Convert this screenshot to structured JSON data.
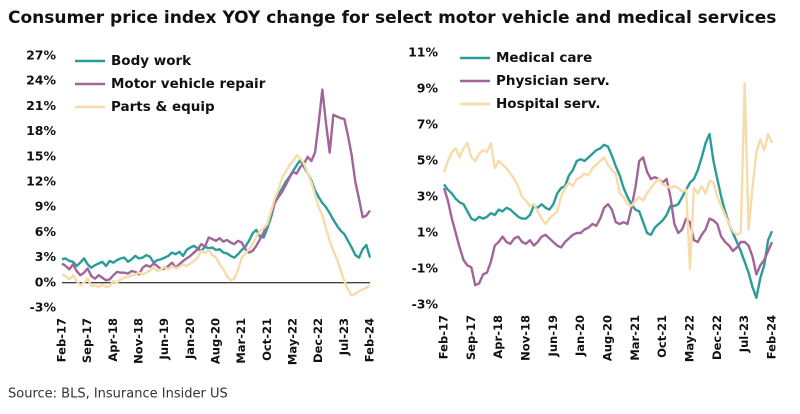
{
  "title": "Consumer price index YOY change for select motor vehicle and medical services",
  "source": "Source: BLS, Insurance Insider US",
  "chart_data": [
    {
      "type": "line",
      "categories": [
        "Feb-17",
        null,
        null,
        null,
        null,
        null,
        null,
        "Sep-17",
        null,
        null,
        null,
        null,
        null,
        null,
        "Apr-18",
        null,
        null,
        null,
        null,
        null,
        null,
        "Nov-18",
        null,
        null,
        null,
        null,
        null,
        null,
        "Jun-19",
        null,
        null,
        null,
        null,
        null,
        null,
        "Jan-20",
        null,
        null,
        null,
        null,
        null,
        null,
        "Aug-20",
        null,
        null,
        null,
        null,
        null,
        null,
        "Mar-21",
        null,
        null,
        null,
        null,
        null,
        null,
        "Oct-21",
        null,
        null,
        null,
        null,
        null,
        null,
        "May-22",
        null,
        null,
        null,
        null,
        null,
        null,
        "Dec-22",
        null,
        null,
        null,
        null,
        null,
        null,
        "Jul-23",
        null,
        null,
        null,
        null,
        null,
        null,
        "Feb-24"
      ],
      "ylim": [
        -3,
        27
      ],
      "yticks": [
        {
          "value": -3,
          "label": "-3%"
        },
        {
          "value": 0,
          "label": "0%"
        },
        {
          "value": 3,
          "label": "3%"
        },
        {
          "value": 6,
          "label": "6%"
        },
        {
          "value": 9,
          "label": "9%"
        },
        {
          "value": 12,
          "label": "12%"
        },
        {
          "value": 15,
          "label": "15%"
        },
        {
          "value": 18,
          "label": "18%"
        },
        {
          "value": 21,
          "label": "21%"
        },
        {
          "value": 24,
          "label": "24%"
        },
        {
          "value": 27,
          "label": "27%"
        }
      ],
      "series": [
        {
          "name": "Body work",
          "color": "#2a9d99",
          "values": [
            2.8,
            2.9,
            2.6,
            2.5,
            2.0,
            2.4,
            2.9,
            2.2,
            1.8,
            2.1,
            2.3,
            2.5,
            2.0,
            2.6,
            2.4,
            2.7,
            2.9,
            3.0,
            2.5,
            2.8,
            3.2,
            2.9,
            3.0,
            3.3,
            3.1,
            2.4,
            2.7,
            2.8,
            3.0,
            3.2,
            3.6,
            3.4,
            3.7,
            3.2,
            3.9,
            4.2,
            4.4,
            4.1,
            3.8,
            4.3,
            4.1,
            4.2,
            3.9,
            4.0,
            3.6,
            3.5,
            3.2,
            3.0,
            3.4,
            3.9,
            4.3,
            5.0,
            5.9,
            6.3,
            5.5,
            5.4,
            6.5,
            7.8,
            9.5,
            10.5,
            11.2,
            12.0,
            12.6,
            13.3,
            14.0,
            14.6,
            13.8,
            13.0,
            12.2,
            11.0,
            10.2,
            9.5,
            9.0,
            8.3,
            7.5,
            6.8,
            6.2,
            5.8,
            5.0,
            4.2,
            3.3,
            3.0,
            4.0,
            4.5,
            3.0
          ]
        },
        {
          "name": "Motor vehicle repair",
          "color": "#a0659a",
          "values": [
            2.3,
            2.0,
            1.6,
            2.2,
            1.4,
            0.9,
            1.2,
            1.7,
            0.8,
            0.5,
            0.9,
            0.6,
            0.3,
            0.4,
            0.9,
            1.3,
            1.2,
            1.2,
            1.1,
            1.4,
            1.3,
            1.0,
            1.8,
            2.1,
            1.9,
            2.3,
            2.0,
            1.6,
            1.7,
            2.0,
            2.4,
            1.8,
            2.2,
            2.6,
            2.9,
            3.2,
            3.6,
            4.0,
            4.6,
            4.3,
            5.4,
            5.2,
            5.0,
            5.3,
            4.9,
            5.1,
            4.8,
            4.6,
            5.0,
            4.8,
            4.0,
            3.6,
            3.8,
            4.4,
            5.2,
            6.0,
            7.0,
            8.2,
            9.5,
            10.2,
            10.8,
            11.6,
            12.5,
            13.2,
            13.0,
            13.8,
            14.2,
            15.0,
            14.5,
            15.5,
            19.0,
            23.0,
            19.0,
            15.5,
            20.0,
            19.8,
            19.6,
            19.5,
            17.5,
            15.2,
            12.0,
            10.0,
            7.8,
            8.0,
            8.6
          ]
        },
        {
          "name": "Parts & equip",
          "color": "#f6dcaa",
          "values": [
            1.0,
            0.8,
            0.4,
            0.9,
            0.2,
            -0.3,
            0.0,
            0.5,
            -0.4,
            -0.3,
            -0.5,
            -0.2,
            -0.5,
            -0.4,
            0.2,
            0.0,
            0.4,
            0.6,
            0.7,
            0.9,
            1.0,
            1.2,
            1.0,
            1.2,
            1.5,
            1.8,
            1.4,
            1.6,
            1.9,
            1.6,
            2.0,
            1.7,
            1.9,
            2.2,
            2.0,
            2.3,
            2.6,
            3.0,
            3.8,
            3.5,
            3.9,
            3.3,
            3.0,
            2.2,
            1.6,
            0.8,
            0.3,
            0.5,
            1.5,
            3.0,
            3.5,
            4.0,
            4.6,
            5.5,
            6.2,
            6.5,
            7.0,
            8.5,
            10.0,
            11.0,
            12.5,
            13.2,
            14.0,
            14.5,
            15.2,
            14.8,
            14.2,
            13.0,
            12.0,
            10.5,
            9.0,
            8.0,
            6.5,
            5.0,
            3.8,
            2.8,
            1.5,
            0.2,
            -0.8,
            -1.5,
            -1.3,
            -1.0,
            -0.8,
            -0.6,
            -0.3
          ]
        }
      ]
    },
    {
      "type": "line",
      "categories": [
        "Feb-17",
        null,
        null,
        null,
        null,
        null,
        null,
        "Sep-17",
        null,
        null,
        null,
        null,
        null,
        null,
        "Apr-18",
        null,
        null,
        null,
        null,
        null,
        null,
        "Nov-18",
        null,
        null,
        null,
        null,
        null,
        null,
        "Jun-19",
        null,
        null,
        null,
        null,
        null,
        null,
        "Jan-20",
        null,
        null,
        null,
        null,
        null,
        null,
        "Aug-20",
        null,
        null,
        null,
        null,
        null,
        null,
        "Mar-21",
        null,
        null,
        null,
        null,
        null,
        null,
        "Oct-21",
        null,
        null,
        null,
        null,
        null,
        null,
        "May-22",
        null,
        null,
        null,
        null,
        null,
        null,
        "Dec-22",
        null,
        null,
        null,
        null,
        null,
        null,
        "Jul-23",
        null,
        null,
        null,
        null,
        null,
        null,
        "Feb-24"
      ],
      "ylim": [
        -3,
        11
      ],
      "yticks": [
        {
          "value": -3,
          "label": "-3%"
        },
        {
          "value": -1,
          "label": "-1%"
        },
        {
          "value": 1,
          "label": "1%"
        },
        {
          "value": 3,
          "label": "3%"
        },
        {
          "value": 5,
          "label": "5%"
        },
        {
          "value": 7,
          "label": "7%"
        },
        {
          "value": 9,
          "label": "9%"
        },
        {
          "value": 11,
          "label": "11%"
        }
      ],
      "series": [
        {
          "name": "Medical care",
          "color": "#2a9d99",
          "values": [
            3.7,
            3.4,
            3.2,
            2.9,
            2.7,
            2.6,
            2.2,
            1.8,
            1.7,
            1.9,
            1.8,
            1.9,
            2.1,
            2.0,
            2.3,
            2.2,
            2.4,
            2.3,
            2.1,
            1.9,
            1.8,
            1.8,
            2.0,
            2.5,
            2.4,
            2.6,
            2.4,
            2.3,
            2.6,
            3.2,
            3.5,
            3.6,
            4.2,
            4.5,
            5.0,
            5.1,
            5.0,
            5.2,
            5.4,
            5.6,
            5.7,
            5.9,
            5.8,
            5.3,
            4.7,
            4.2,
            3.5,
            3.0,
            2.6,
            2.3,
            2.2,
            1.6,
            1.0,
            0.9,
            1.3,
            1.5,
            1.7,
            2.0,
            2.5,
            2.5,
            2.6,
            3.0,
            3.4,
            3.8,
            4.0,
            4.5,
            5.2,
            6.0,
            6.5,
            5.0,
            4.0,
            3.0,
            2.2,
            1.5,
            1.0,
            0.5,
            0.0,
            -0.6,
            -1.2,
            -2.0,
            -2.6,
            -1.5,
            -0.8,
            0.6,
            1.1
          ]
        },
        {
          "name": "Physician serv.",
          "color": "#a0659a",
          "values": [
            3.5,
            2.8,
            1.8,
            1.0,
            0.2,
            -0.5,
            -0.8,
            -0.9,
            -1.9,
            -1.8,
            -1.3,
            -1.2,
            -0.6,
            0.3,
            0.5,
            0.8,
            0.5,
            0.4,
            0.7,
            0.8,
            0.5,
            0.4,
            0.6,
            0.3,
            0.5,
            0.8,
            0.9,
            0.7,
            0.5,
            0.3,
            0.2,
            0.5,
            0.7,
            0.9,
            1.0,
            1.0,
            1.2,
            1.3,
            1.5,
            1.4,
            1.8,
            2.4,
            2.6,
            2.3,
            1.6,
            1.5,
            1.6,
            1.5,
            2.4,
            3.5,
            5.0,
            5.2,
            4.4,
            4.0,
            4.1,
            4.0,
            3.8,
            4.0,
            3.0,
            1.5,
            1.0,
            1.2,
            1.8,
            1.6,
            0.6,
            0.5,
            0.9,
            1.2,
            1.8,
            1.7,
            1.5,
            0.8,
            0.5,
            0.3,
            0.0,
            0.2,
            0.5,
            0.5,
            0.3,
            -0.3,
            -1.3,
            -0.8,
            -0.5,
            0.0,
            0.5
          ]
        },
        {
          "name": "Hospital serv.",
          "color": "#f6dcaa",
          "values": [
            4.4,
            5.0,
            5.5,
            5.7,
            5.2,
            5.7,
            6.0,
            5.2,
            5.0,
            5.4,
            5.6,
            5.5,
            6.0,
            4.6,
            5.0,
            4.8,
            4.6,
            4.3,
            4.0,
            3.6,
            3.0,
            2.8,
            2.5,
            2.6,
            2.2,
            1.8,
            1.5,
            1.8,
            2.0,
            2.2,
            3.0,
            3.5,
            3.8,
            3.6,
            4.0,
            4.1,
            4.3,
            4.2,
            4.6,
            4.8,
            5.0,
            5.2,
            4.8,
            4.5,
            4.3,
            3.2,
            3.0,
            2.6,
            2.5,
            2.8,
            3.0,
            2.8,
            3.2,
            3.5,
            3.8,
            4.0,
            3.7,
            3.6,
            3.5,
            3.6,
            3.5,
            3.3,
            3.4,
            -1.0,
            3.5,
            3.2,
            3.6,
            3.2,
            3.9,
            3.8,
            3.0,
            2.5,
            2.0,
            1.5,
            1.1,
            0.9,
            1.0,
            9.3,
            1.2,
            3.5,
            5.5,
            6.2,
            5.6,
            6.5,
            6.0
          ]
        }
      ]
    }
  ]
}
